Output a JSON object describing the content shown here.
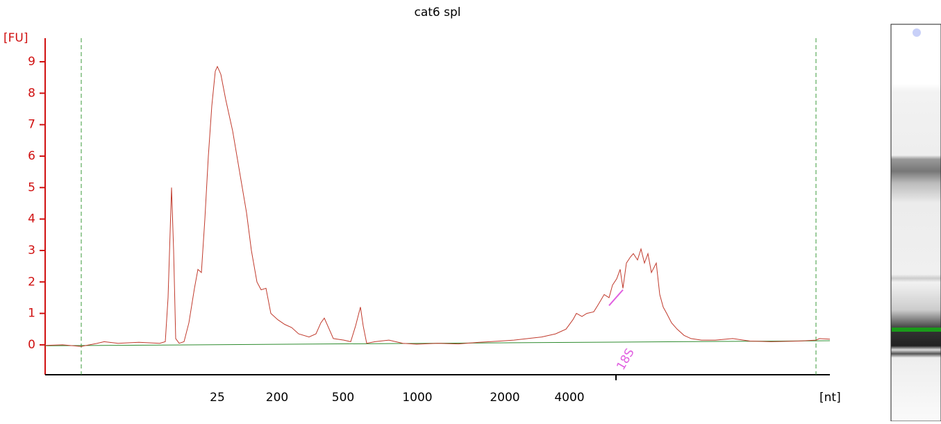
{
  "chart_data": {
    "type": "line",
    "title": "cat6 spl",
    "y_label": "[FU]",
    "x_label": "[nt]",
    "x": [
      0,
      25,
      52,
      75,
      85,
      105,
      135,
      165,
      173,
      177,
      182,
      185,
      188,
      193,
      200,
      207,
      215,
      220,
      225,
      230,
      235,
      240,
      245,
      248,
      253,
      260,
      270,
      280,
      290,
      297,
      305,
      311,
      318,
      325,
      335,
      345,
      355,
      365,
      380,
      390,
      397,
      402,
      407,
      415,
      430,
      440,
      447,
      454,
      458,
      463,
      475,
      495,
      515,
      535,
      565,
      595,
      625,
      655,
      675,
      695,
      715,
      735,
      750,
      760,
      765,
      773,
      780,
      790,
      797,
      805,
      812,
      817,
      823,
      828,
      832,
      837,
      843,
      847,
      853,
      858,
      863,
      868,
      873,
      880,
      885,
      890,
      895,
      902,
      910,
      920,
      930,
      945,
      965,
      990,
      1015,
      1045,
      1085,
      1110,
      1115,
      1130
    ],
    "series": [
      {
        "name": "trace",
        "color": "#c0392b",
        "values": [
          -0.02,
          0,
          -0.05,
          0.05,
          0.1,
          0.05,
          0.08,
          0.05,
          0.1,
          1.5,
          5.0,
          3.0,
          0.2,
          0.05,
          0.1,
          0.7,
          1.8,
          2.4,
          2.3,
          4.0,
          6.0,
          7.6,
          8.7,
          8.85,
          8.6,
          7.8,
          6.8,
          5.5,
          4.2,
          3.0,
          2.0,
          1.75,
          1.8,
          1.0,
          0.8,
          0.65,
          0.55,
          0.35,
          0.25,
          0.35,
          0.7,
          0.85,
          0.6,
          0.2,
          0.15,
          0.1,
          0.6,
          1.2,
          0.6,
          0.05,
          0.1,
          0.15,
          0.05,
          0.02,
          0.05,
          0.03,
          0.08,
          0.12,
          0.15,
          0.2,
          0.25,
          0.35,
          0.5,
          0.8,
          1.0,
          0.9,
          1.0,
          1.05,
          1.3,
          1.6,
          1.5,
          1.9,
          2.1,
          2.4,
          1.8,
          2.6,
          2.8,
          2.9,
          2.7,
          3.05,
          2.6,
          2.9,
          2.3,
          2.6,
          1.6,
          1.2,
          1.0,
          0.7,
          0.5,
          0.3,
          0.2,
          0.15,
          0.15,
          0.2,
          0.12,
          0.1,
          0.12,
          0.15,
          0.2,
          0.18
        ]
      }
    ],
    "baseline": {
      "color": "#2e8b2e",
      "x": [
        0,
        1130
      ],
      "values": [
        -0.03,
        0.13
      ]
    },
    "window": {
      "color": "#3a9a3a",
      "x": [
        52,
        1110
      ]
    },
    "markers": [
      {
        "label": "18S",
        "x": 822,
        "color": "#e060e0",
        "fit_x": [
          812,
          832
        ],
        "fit_values": [
          1.25,
          1.75
        ]
      }
    ],
    "xlim": [
      0,
      1130
    ],
    "xticks": [
      {
        "value": 248,
        "label": "25"
      },
      {
        "value": 334,
        "label": "200"
      },
      {
        "value": 429,
        "label": "500"
      },
      {
        "value": 536,
        "label": "1000"
      },
      {
        "value": 662,
        "label": "2000"
      },
      {
        "value": 755,
        "label": "4000"
      }
    ],
    "ylim": [
      -0.95,
      9.75
    ],
    "yticks": [
      0,
      1,
      2,
      3,
      4,
      5,
      6,
      7,
      8,
      9
    ],
    "axis_color": "#d01010"
  }
}
